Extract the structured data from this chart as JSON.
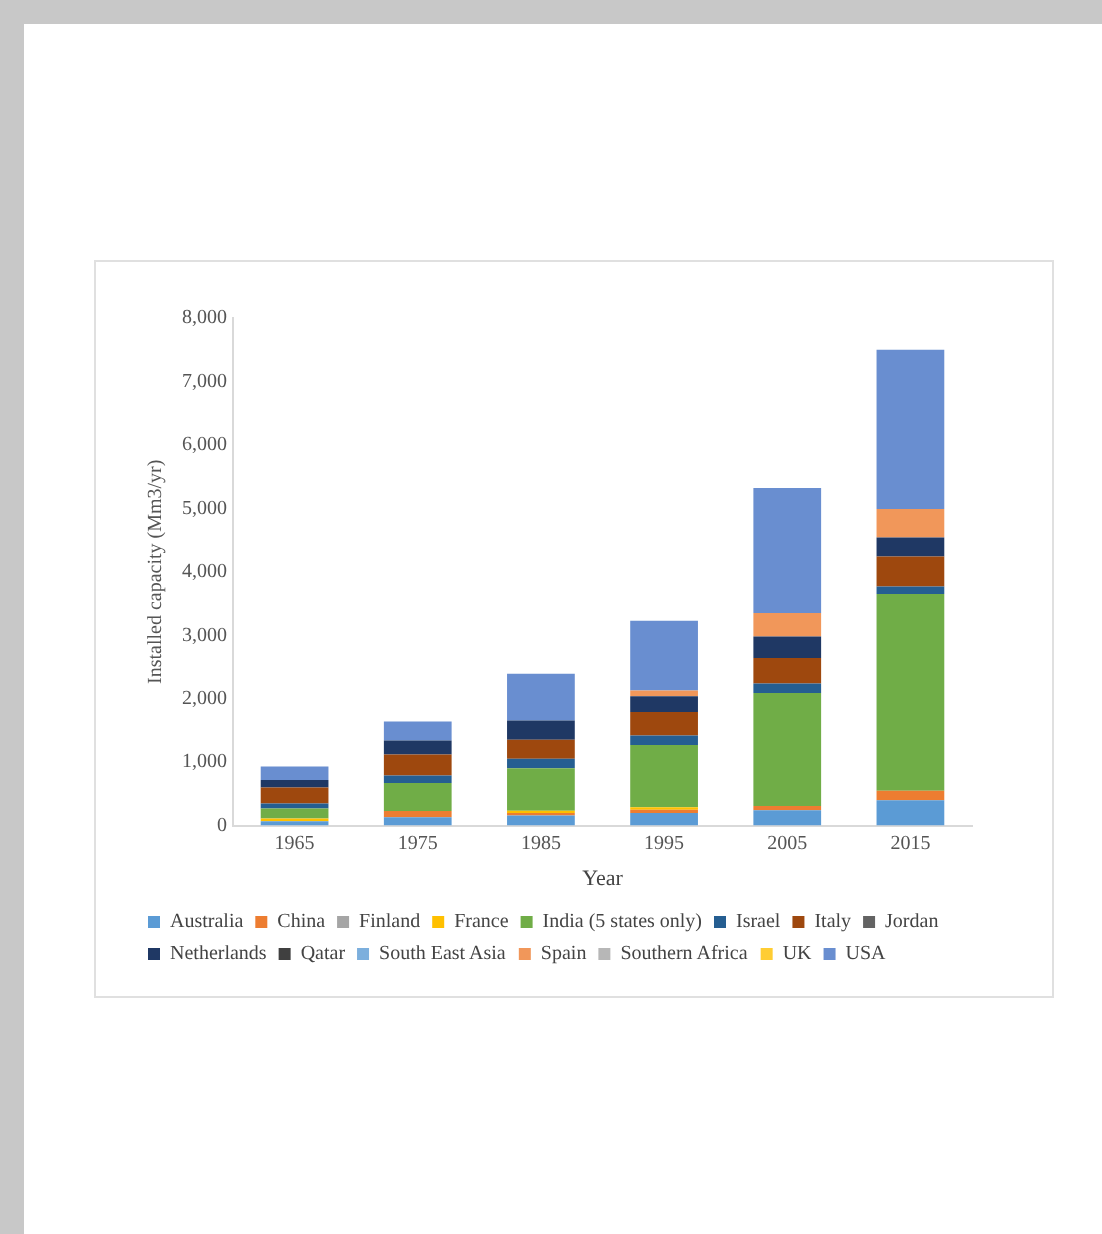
{
  "chart_data": {
    "type": "bar",
    "stacked": true,
    "xlabel": "Year",
    "ylabel": "Installed capacity (Mm3/yr)",
    "categories": [
      "1965",
      "1975",
      "1985",
      "1995",
      "2005",
      "2015"
    ],
    "ylim": [
      0,
      8000
    ],
    "yticks": [
      {
        "value": 0,
        "label": "0"
      },
      {
        "value": 1000,
        "label": "1,000"
      },
      {
        "value": 2000,
        "label": "2,000"
      },
      {
        "value": 3000,
        "label": "3,000"
      },
      {
        "value": 4000,
        "label": "4,000"
      },
      {
        "value": 5000,
        "label": "5,000"
      },
      {
        "value": 6000,
        "label": "6,000"
      },
      {
        "value": 7000,
        "label": "7,000"
      },
      {
        "value": 8000,
        "label": "8,000"
      }
    ],
    "grid": false,
    "legend": "bottom",
    "series": [
      {
        "name": "Australia",
        "color": "#5b9bd5",
        "values": [
          70,
          130,
          160,
          200,
          240,
          400
        ]
      },
      {
        "name": "China",
        "color": "#ed7d31",
        "values": [
          0,
          100,
          40,
          50,
          70,
          150
        ]
      },
      {
        "name": "Finland",
        "color": "#a5a5a5",
        "values": [
          0,
          0,
          0,
          0,
          0,
          0
        ]
      },
      {
        "name": "France",
        "color": "#ffc000",
        "values": [
          40,
          0,
          35,
          40,
          0,
          0
        ]
      },
      {
        "name": "India (5 states only)",
        "color": "#70ad47",
        "values": [
          160,
          440,
          670,
          980,
          1780,
          3100
        ]
      },
      {
        "name": "Israel",
        "color": "#255e91",
        "values": [
          80,
          120,
          150,
          150,
          150,
          120
        ]
      },
      {
        "name": "Italy",
        "color": "#9e480e",
        "values": [
          250,
          330,
          300,
          370,
          400,
          470
        ]
      },
      {
        "name": "Jordan",
        "color": "#636363",
        "values": [
          0,
          0,
          0,
          0,
          0,
          0
        ]
      },
      {
        "name": "Netherlands",
        "color": "#1f3864",
        "values": [
          120,
          220,
          300,
          250,
          340,
          300
        ]
      },
      {
        "name": "Qatar",
        "color": "#404040",
        "values": [
          0,
          0,
          0,
          0,
          0,
          0
        ]
      },
      {
        "name": "South East Asia",
        "color": "#7cafdd",
        "values": [
          0,
          0,
          0,
          0,
          0,
          0
        ]
      },
      {
        "name": "Spain",
        "color": "#f1975a",
        "values": [
          0,
          0,
          0,
          90,
          370,
          450
        ]
      },
      {
        "name": "Southern Africa",
        "color": "#b7b7b7",
        "values": [
          0,
          0,
          0,
          0,
          0,
          0
        ]
      },
      {
        "name": "UK",
        "color": "#ffcd33",
        "values": [
          0,
          0,
          0,
          0,
          0,
          0
        ]
      },
      {
        "name": "USA",
        "color": "#698ed0",
        "values": [
          210,
          300,
          740,
          1100,
          1970,
          2510
        ]
      }
    ]
  }
}
